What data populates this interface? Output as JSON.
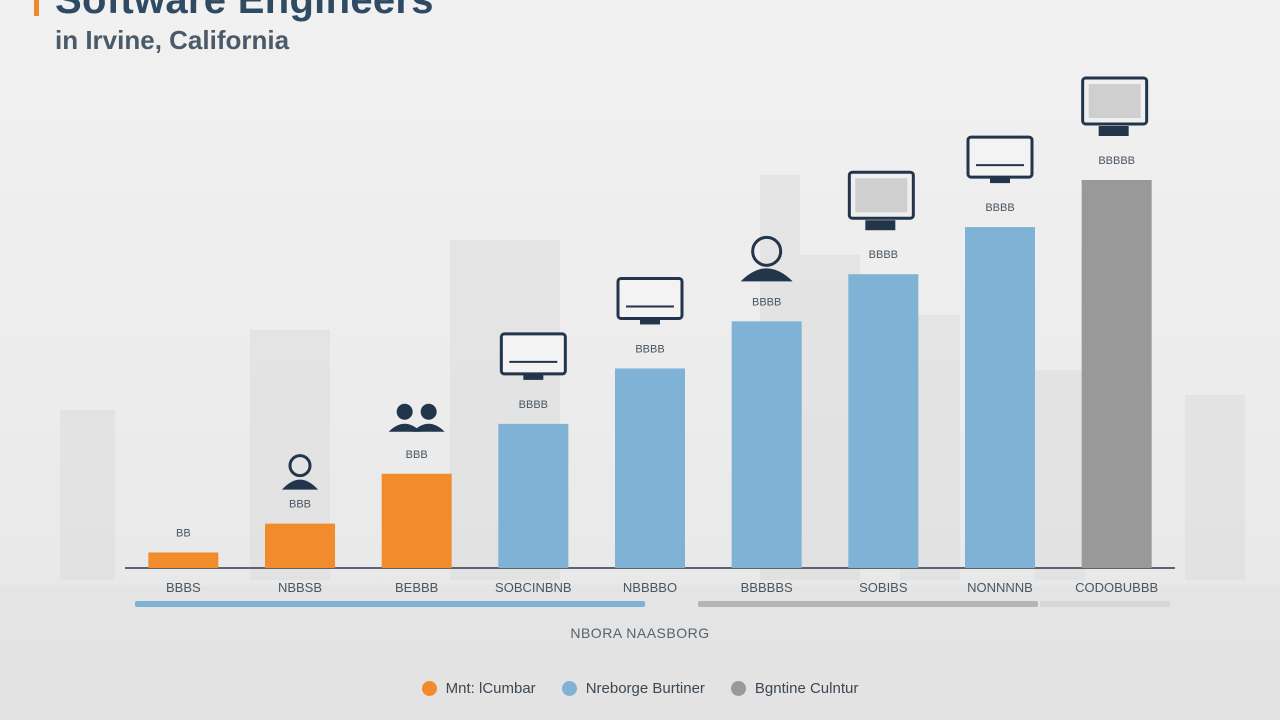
{
  "title": "Software Engineers",
  "subtitle": "in Irvine, California",
  "colors": {
    "accent": "#ee8a2c",
    "orange": "#f28b2c",
    "blue": "#7fb2d4",
    "gray": "#999999",
    "text": "#4a5661",
    "baseline": "#5a6470",
    "icon": "#23354a"
  },
  "icons": [
    "person-icon",
    "people-pair-icon",
    "presenter-screen-icon",
    "monitor-chart-icon",
    "developer-workstation-icon",
    "headset-user-icon",
    "desktop-monitor-icon",
    "computer-icon"
  ],
  "chart_data": {
    "type": "bar",
    "title": "Software Engineers",
    "subtitle": "in Irvine, California",
    "xlabel": "NBORA NAASBORG",
    "ylabel": "",
    "grid": false,
    "legend_position": "bottom",
    "ylim": [
      0,
      7000
    ],
    "categories": [
      "BBBS",
      "NBBSB",
      "BEBBB",
      "SOBCINBNB",
      "NBBBBO",
      "BBBBBS",
      "SOBIBS",
      "NONNNNB",
      "CODOBUBBB"
    ],
    "values": [
      280,
      800,
      1700,
      2600,
      3600,
      4450,
      5300,
      6150,
      7000
    ],
    "value_labels": [
      "BB",
      "BBB",
      "BBB",
      "BBBB",
      "BBBB",
      "BBBB",
      "BBBB",
      "BBBB",
      "BBBBB"
    ],
    "groups": [
      0,
      0,
      0,
      1,
      1,
      1,
      1,
      1,
      2
    ],
    "series": [
      {
        "name": "Mnt: lCumbar",
        "color": "#f28b2c"
      },
      {
        "name": "Nreborge Burtiner",
        "color": "#7fb2d4"
      },
      {
        "name": "Bgntine Culntur",
        "color": "#999999"
      }
    ]
  }
}
